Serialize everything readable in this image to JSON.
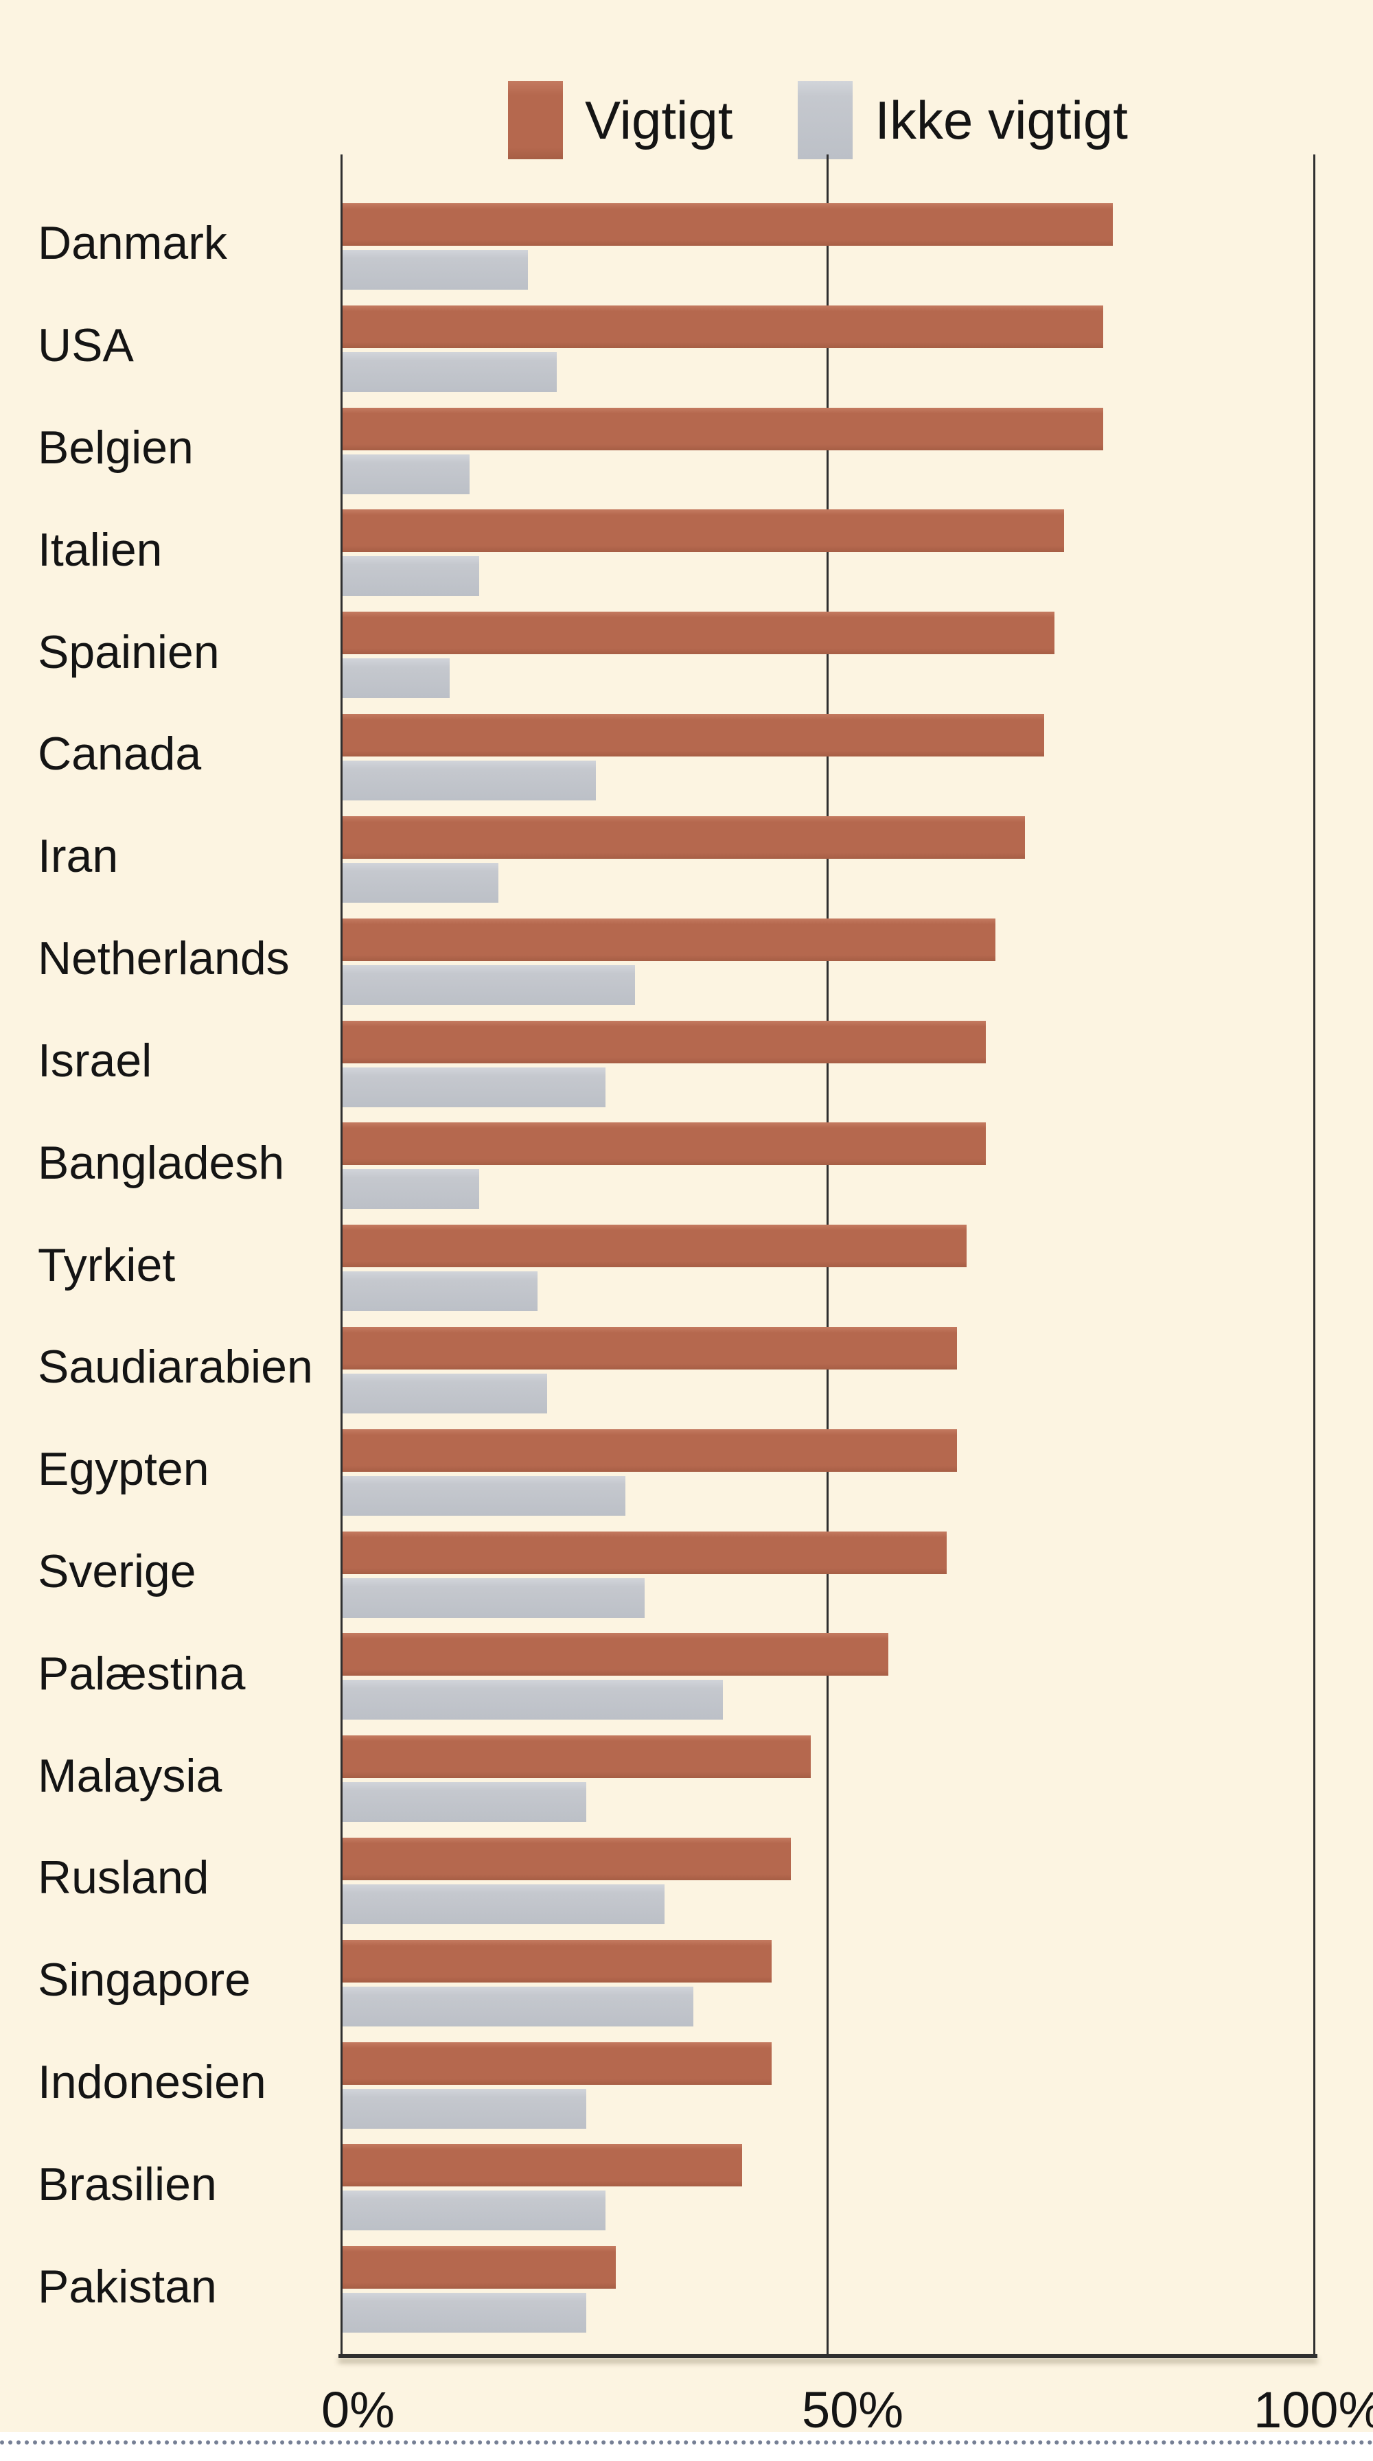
{
  "chart_data": {
    "type": "bar",
    "orientation": "horizontal",
    "title": "",
    "categories": [
      "Danmark",
      "USA",
      "Belgien",
      "Italien",
      "Spainien",
      "Canada",
      "Iran",
      "Netherlands",
      "Israel",
      "Bangladesh",
      "Tyrkiet",
      "Saudiarabien",
      "Egypten",
      "Sverige",
      "Palæstina",
      "Malaysia",
      "Rusland",
      "Singapore",
      "Indonesien",
      "Brasilien",
      "Pakistan"
    ],
    "series": [
      {
        "name": "Vigtigt",
        "values": [
          79,
          78,
          78,
          74,
          73,
          72,
          70,
          67,
          66,
          66,
          64,
          63,
          63,
          62,
          56,
          48,
          46,
          44,
          44,
          41,
          28
        ]
      },
      {
        "name": "Ikke vigtigt",
        "values": [
          19,
          22,
          13,
          14,
          11,
          26,
          16,
          30,
          27,
          14,
          20,
          21,
          29,
          31,
          39,
          25,
          33,
          36,
          25,
          27,
          25
        ]
      }
    ],
    "x_ticks": [
      "0%",
      "50%",
      "100%"
    ],
    "xlim": [
      0,
      100
    ],
    "grid": "vertical lines at 0%, 50%, 100%",
    "legend_position": "top-center",
    "colors": {
      "vigtigt": "#b5684e",
      "ikke_vigtigt": "#c5c8ce",
      "background": "#fcf4e1",
      "axis": "#2f2f2f",
      "text": "#141414"
    }
  }
}
